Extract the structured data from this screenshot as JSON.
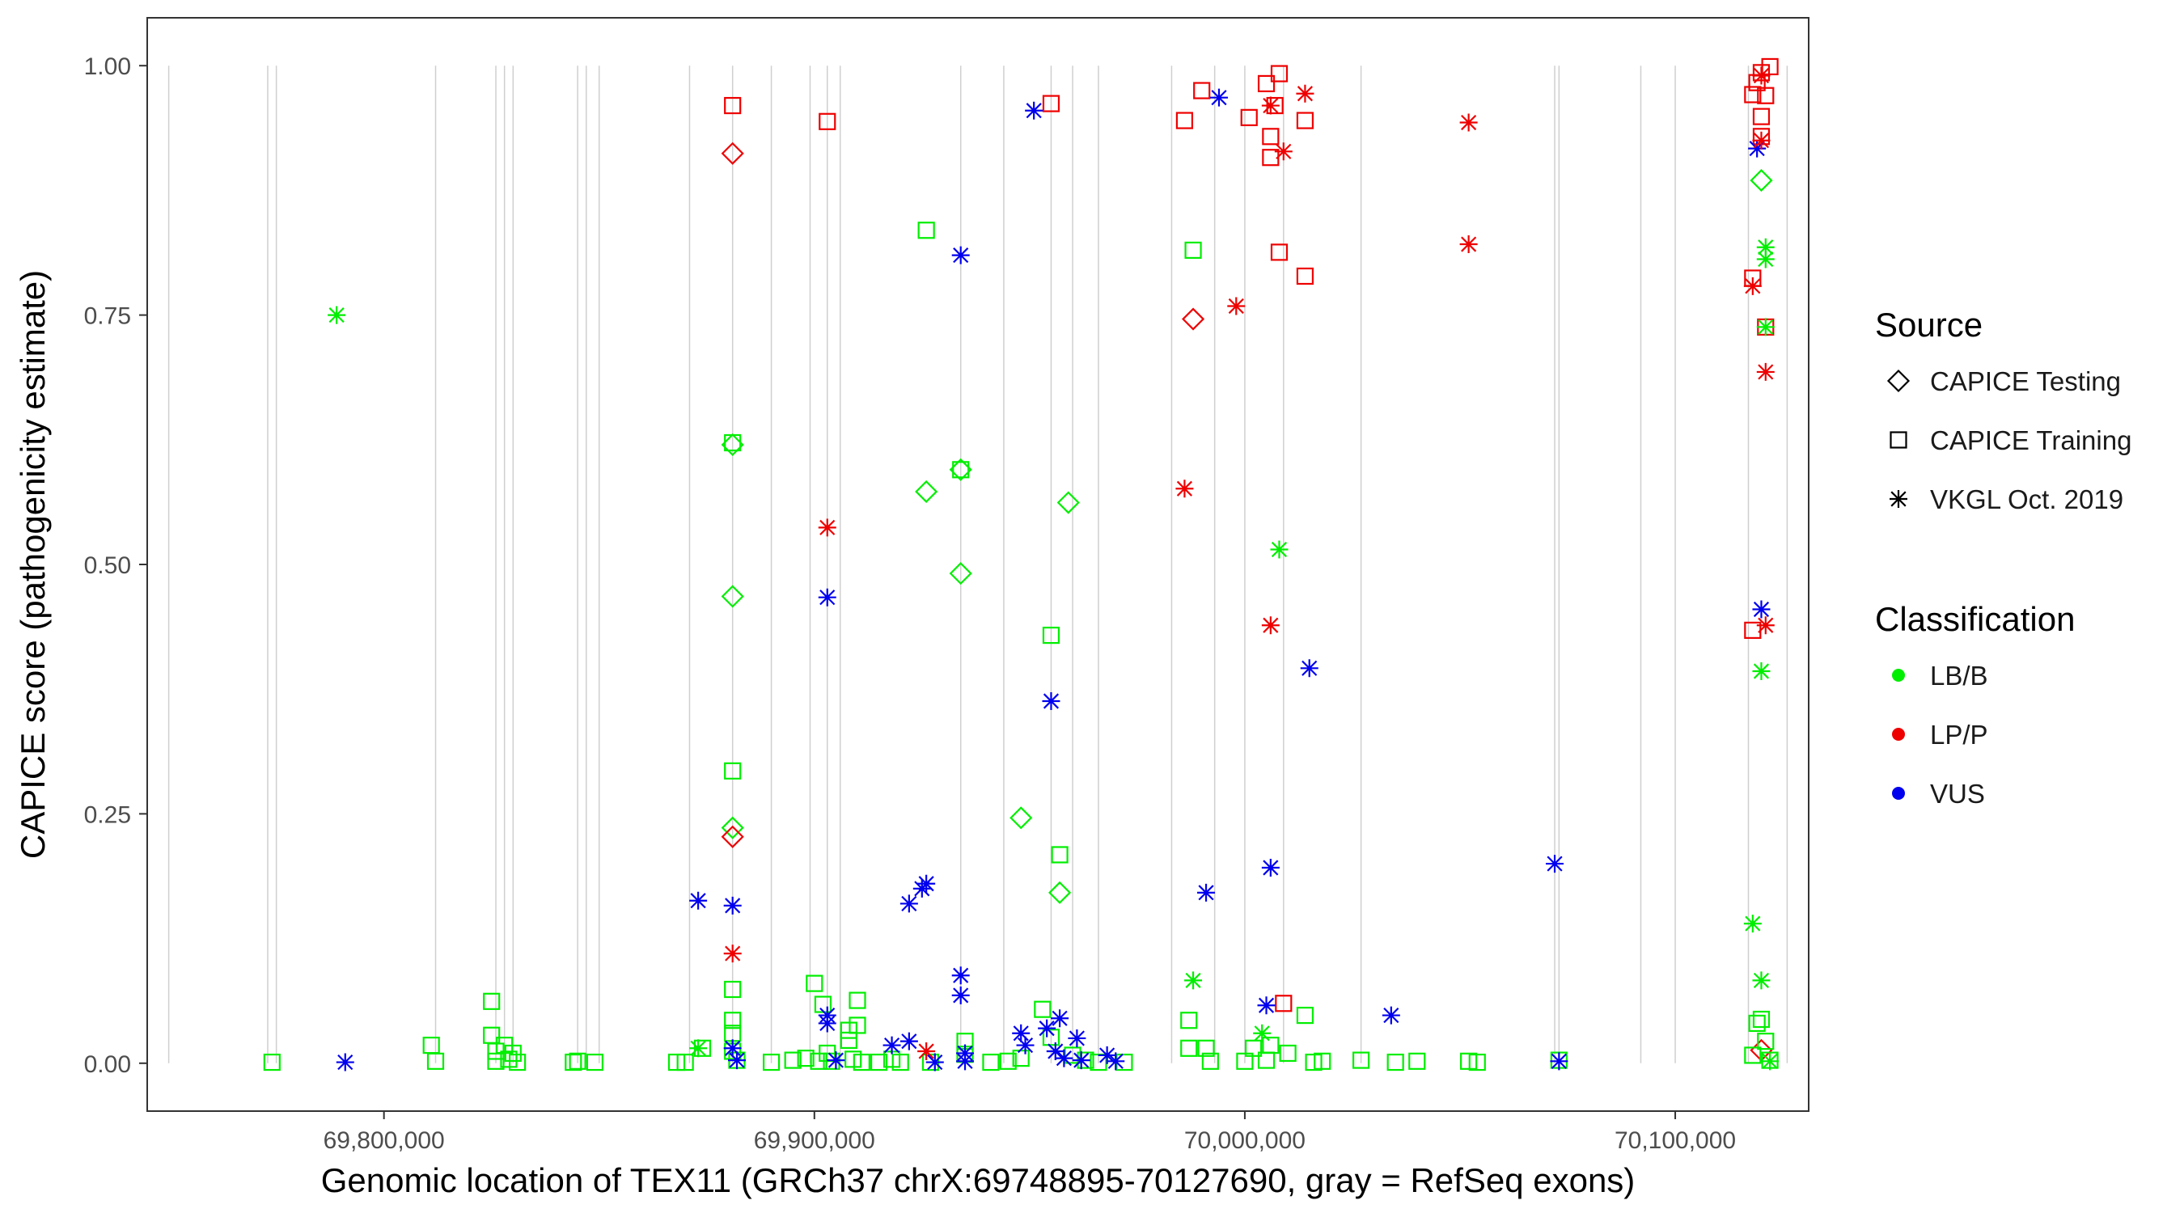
{
  "chart_data": {
    "type": "scatter",
    "title": "",
    "xlabel": "Genomic location of TEX11 (GRCh37 chrX:69748895-70127690, gray = RefSeq exons)",
    "ylabel": "CAPICE score (pathogenicity estimate)",
    "xlim": [
      69745000,
      70131000
    ],
    "ylim": [
      -0.048,
      1.048
    ],
    "x_ticks": [
      69800000,
      69900000,
      70000000,
      70100000
    ],
    "x_tick_labels": [
      "69,800,000",
      "69,900,000",
      "70,000,000",
      "70,100,000"
    ],
    "y_ticks": [
      0,
      0.25,
      0.5,
      0.75,
      1.0
    ],
    "y_tick_labels": [
      "0.00",
      "0.25",
      "0.50",
      "0.75",
      "1.00"
    ],
    "exons": [
      69750000,
      69773000,
      69775000,
      69812000,
      69826000,
      69828000,
      69830000,
      69845000,
      69847000,
      69850000,
      69871000,
      69881000,
      69890000,
      69899000,
      69903000,
      69906000,
      69934000,
      69944000,
      69955000,
      69960000,
      69966000,
      69983000,
      69993000,
      70000000,
      70009000,
      70027000,
      70072000,
      70073000,
      70092000,
      70100000,
      70117000,
      70126000
    ],
    "legend_source": {
      "title": "Source",
      "entries": [
        {
          "label": "CAPICE Testing",
          "shape": "diamond"
        },
        {
          "label": "CAPICE Training",
          "shape": "square"
        },
        {
          "label": "VKGL Oct. 2019",
          "shape": "asterisk"
        }
      ]
    },
    "legend_class": {
      "title": "Classification",
      "entries": [
        {
          "label": "LB/B",
          "color": "#00ee00"
        },
        {
          "label": "LP/P",
          "color": "#ee0000"
        },
        {
          "label": "VUS",
          "color": "#0000ee"
        }
      ]
    },
    "colors": {
      "LB/B": "#00ee00",
      "LP/P": "#ee0000",
      "VUS": "#0000ee"
    },
    "series": [
      {
        "name": "CAPICE Testing",
        "shape": "diamond",
        "points": [
          [
            69881000,
            0.912,
            "LP/P"
          ],
          [
            69881000,
            0.62,
            "LB/B"
          ],
          [
            69881000,
            0.468,
            "LB/B"
          ],
          [
            69881000,
            0.236,
            "LB/B"
          ],
          [
            69881000,
            0.227,
            "LP/P"
          ],
          [
            69926000,
            0.573,
            "LB/B"
          ],
          [
            69934000,
            0.595,
            "LB/B"
          ],
          [
            69934000,
            0.491,
            "LB/B"
          ],
          [
            69948000,
            0.246,
            "LB/B"
          ],
          [
            69957000,
            0.171,
            "LB/B"
          ],
          [
            69959000,
            0.562,
            "LB/B"
          ],
          [
            69988000,
            0.746,
            "LP/P"
          ],
          [
            70120000,
            0.885,
            "LB/B"
          ],
          [
            70120000,
            0.013,
            "LP/P"
          ]
        ]
      },
      {
        "name": "CAPICE Training",
        "shape": "square",
        "points": [
          [
            69774000,
            0.001,
            "LB/B"
          ],
          [
            69811000,
            0.018,
            "LB/B"
          ],
          [
            69812000,
            0.002,
            "LB/B"
          ],
          [
            69825000,
            0.062,
            "LB/B"
          ],
          [
            69825000,
            0.028,
            "LB/B"
          ],
          [
            69826000,
            0.012,
            "LB/B"
          ],
          [
            69826000,
            0.002,
            "LB/B"
          ],
          [
            69828000,
            0.018,
            "LB/B"
          ],
          [
            69829000,
            0.004,
            "LB/B"
          ],
          [
            69830000,
            0.01,
            "LB/B"
          ],
          [
            69831000,
            0.001,
            "LB/B"
          ],
          [
            69844000,
            0.001,
            "LB/B"
          ],
          [
            69845000,
            0.002,
            "LB/B"
          ],
          [
            69849000,
            0.001,
            "LB/B"
          ],
          [
            69868000,
            0.001,
            "LB/B"
          ],
          [
            69870000,
            0.001,
            "LB/B"
          ],
          [
            69874000,
            0.015,
            "LB/B"
          ],
          [
            69881000,
            0.96,
            "LP/P"
          ],
          [
            69881000,
            0.622,
            "LB/B"
          ],
          [
            69881000,
            0.293,
            "LB/B"
          ],
          [
            69881000,
            0.074,
            "LB/B"
          ],
          [
            69881000,
            0.043,
            "LB/B"
          ],
          [
            69881000,
            0.03,
            "LB/B"
          ],
          [
            69881000,
            0.012,
            "LB/B"
          ],
          [
            69882000,
            0.003,
            "LB/B"
          ],
          [
            69890000,
            0.001,
            "LB/B"
          ],
          [
            69895000,
            0.003,
            "LB/B"
          ],
          [
            69898000,
            0.005,
            "LB/B"
          ],
          [
            69900000,
            0.08,
            "LB/B"
          ],
          [
            69901000,
            0.002,
            "LB/B"
          ],
          [
            69902000,
            0.059,
            "LB/B"
          ],
          [
            69903000,
            0.944,
            "LP/P"
          ],
          [
            69903000,
            0.01,
            "LB/B"
          ],
          [
            69904000,
            0.002,
            "LB/B"
          ],
          [
            69908000,
            0.033,
            "LB/B"
          ],
          [
            69908000,
            0.023,
            "LB/B"
          ],
          [
            69909000,
            0.004,
            "LB/B"
          ],
          [
            69910000,
            0.063,
            "LB/B"
          ],
          [
            69910000,
            0.038,
            "LB/B"
          ],
          [
            69911000,
            0.001,
            "LB/B"
          ],
          [
            69915000,
            0.001,
            "LB/B"
          ],
          [
            69918000,
            0.004,
            "LB/B"
          ],
          [
            69920000,
            0.001,
            "LB/B"
          ],
          [
            69926000,
            0.835,
            "LB/B"
          ],
          [
            69927000,
            0.001,
            "LB/B"
          ],
          [
            69934000,
            0.595,
            "LB/B"
          ],
          [
            69935000,
            0.022,
            "LB/B"
          ],
          [
            69935000,
            0.009,
            "LB/B"
          ],
          [
            69941000,
            0.001,
            "LB/B"
          ],
          [
            69945000,
            0.002,
            "LB/B"
          ],
          [
            69948000,
            0.005,
            "LB/B"
          ],
          [
            69953000,
            0.054,
            "LB/B"
          ],
          [
            69955000,
            0.962,
            "LP/P"
          ],
          [
            69955000,
            0.429,
            "LB/B"
          ],
          [
            69955000,
            0.026,
            "LB/B"
          ],
          [
            69957000,
            0.209,
            "LB/B"
          ],
          [
            69960000,
            0.008,
            "LB/B"
          ],
          [
            69963000,
            0.003,
            "LB/B"
          ],
          [
            69966000,
            0.001,
            "LB/B"
          ],
          [
            69972000,
            0.001,
            "LB/B"
          ],
          [
            69986000,
            0.945,
            "LP/P"
          ],
          [
            69987000,
            0.043,
            "LB/B"
          ],
          [
            69987000,
            0.015,
            "LB/B"
          ],
          [
            69988000,
            0.815,
            "LB/B"
          ],
          [
            69990000,
            0.975,
            "LP/P"
          ],
          [
            69991000,
            0.015,
            "LB/B"
          ],
          [
            69992000,
            0.002,
            "LB/B"
          ],
          [
            70000000,
            0.002,
            "LB/B"
          ],
          [
            70001000,
            0.948,
            "LP/P"
          ],
          [
            70002000,
            0.015,
            "LB/B"
          ],
          [
            70005000,
            0.003,
            "LB/B"
          ],
          [
            70005000,
            0.982,
            "LP/P"
          ],
          [
            70006000,
            0.929,
            "LP/P"
          ],
          [
            70006000,
            0.908,
            "LP/P"
          ],
          [
            70006000,
            0.018,
            "LB/B"
          ],
          [
            70007000,
            0.96,
            "LP/P"
          ],
          [
            70008000,
            0.992,
            "LP/P"
          ],
          [
            70008000,
            0.813,
            "LP/P"
          ],
          [
            70009000,
            0.06,
            "LP/P"
          ],
          [
            70010000,
            0.01,
            "LB/B"
          ],
          [
            70014000,
            0.945,
            "LP/P"
          ],
          [
            70014000,
            0.789,
            "LP/P"
          ],
          [
            70014000,
            0.048,
            "LB/B"
          ],
          [
            70016000,
            0.001,
            "LB/B"
          ],
          [
            70018000,
            0.002,
            "LB/B"
          ],
          [
            70027000,
            0.003,
            "LB/B"
          ],
          [
            70035000,
            0.001,
            "LB/B"
          ],
          [
            70040000,
            0.002,
            "LB/B"
          ],
          [
            70052000,
            0.002,
            "LB/B"
          ],
          [
            70054000,
            0.001,
            "LB/B"
          ],
          [
            70073000,
            0.003,
            "LB/B"
          ],
          [
            70118000,
            0.971,
            "LP/P"
          ],
          [
            70118000,
            0.787,
            "LP/P"
          ],
          [
            70118000,
            0.434,
            "LP/P"
          ],
          [
            70118000,
            0.008,
            "LB/B"
          ],
          [
            70119000,
            0.983,
            "LP/P"
          ],
          [
            70119000,
            0.04,
            "LB/B"
          ],
          [
            70120000,
            0.993,
            "LP/P"
          ],
          [
            70120000,
            0.949,
            "LP/P"
          ],
          [
            70120000,
            0.929,
            "LP/P"
          ],
          [
            70120000,
            0.044,
            "LB/B"
          ],
          [
            70121000,
            0.97,
            "LP/P"
          ],
          [
            70121000,
            0.738,
            "LP/P"
          ],
          [
            70121000,
            0.022,
            "LB/B"
          ],
          [
            70122000,
            0.999,
            "LP/P"
          ],
          [
            70122000,
            0.003,
            "LB/B"
          ]
        ]
      },
      {
        "name": "VKGL Oct. 2019",
        "shape": "asterisk",
        "points": [
          [
            69789000,
            0.75,
            "LB/B"
          ],
          [
            69791000,
            0.001,
            "VUS"
          ],
          [
            69873000,
            0.163,
            "VUS"
          ],
          [
            69873000,
            0.015,
            "LB/B"
          ],
          [
            69881000,
            0.158,
            "VUS"
          ],
          [
            69881000,
            0.11,
            "LP/P"
          ],
          [
            69881000,
            0.015,
            "VUS"
          ],
          [
            69882000,
            0.003,
            "VUS"
          ],
          [
            69903000,
            0.537,
            "LP/P"
          ],
          [
            69903000,
            0.467,
            "VUS"
          ],
          [
            69903000,
            0.048,
            "VUS"
          ],
          [
            69903000,
            0.04,
            "VUS"
          ],
          [
            69905000,
            0.003,
            "VUS"
          ],
          [
            69918000,
            0.018,
            "VUS"
          ],
          [
            69922000,
            0.16,
            "VUS"
          ],
          [
            69922000,
            0.022,
            "VUS"
          ],
          [
            69925000,
            0.175,
            "VUS"
          ],
          [
            69926000,
            0.18,
            "VUS"
          ],
          [
            69926000,
            0.012,
            "LP/P"
          ],
          [
            69928000,
            0.001,
            "VUS"
          ],
          [
            69934000,
            0.81,
            "VUS"
          ],
          [
            69934000,
            0.088,
            "VUS"
          ],
          [
            69934000,
            0.068,
            "VUS"
          ],
          [
            69935000,
            0.01,
            "VUS"
          ],
          [
            69935000,
            0.002,
            "VUS"
          ],
          [
            69948000,
            0.03,
            "VUS"
          ],
          [
            69949000,
            0.018,
            "VUS"
          ],
          [
            69951000,
            0.955,
            "VUS"
          ],
          [
            69954000,
            0.035,
            "VUS"
          ],
          [
            69955000,
            0.363,
            "VUS"
          ],
          [
            69956000,
            0.012,
            "VUS"
          ],
          [
            69957000,
            0.045,
            "VUS"
          ],
          [
            69958000,
            0.005,
            "VUS"
          ],
          [
            69961000,
            0.025,
            "VUS"
          ],
          [
            69962000,
            0.003,
            "VUS"
          ],
          [
            69968000,
            0.008,
            "VUS"
          ],
          [
            69970000,
            0.002,
            "VUS"
          ],
          [
            69986000,
            0.576,
            "LP/P"
          ],
          [
            69988000,
            0.083,
            "LB/B"
          ],
          [
            69991000,
            0.171,
            "VUS"
          ],
          [
            69994000,
            0.968,
            "VUS"
          ],
          [
            69998000,
            0.759,
            "LP/P"
          ],
          [
            70004000,
            0.03,
            "LB/B"
          ],
          [
            70005000,
            0.058,
            "VUS"
          ],
          [
            70006000,
            0.196,
            "VUS"
          ],
          [
            70006000,
            0.439,
            "LP/P"
          ],
          [
            70006000,
            0.96,
            "LP/P"
          ],
          [
            70008000,
            0.515,
            "LB/B"
          ],
          [
            70009000,
            0.914,
            "LP/P"
          ],
          [
            70014000,
            0.972,
            "LP/P"
          ],
          [
            70015000,
            0.396,
            "VUS"
          ],
          [
            70034000,
            0.048,
            "VUS"
          ],
          [
            70052000,
            0.943,
            "LP/P"
          ],
          [
            70052000,
            0.821,
            "LP/P"
          ],
          [
            70072000,
            0.2,
            "VUS"
          ],
          [
            70073000,
            0.002,
            "VUS"
          ],
          [
            70118000,
            0.14,
            "LB/B"
          ],
          [
            70118000,
            0.779,
            "LP/P"
          ],
          [
            70119000,
            0.917,
            "VUS"
          ],
          [
            70120000,
            0.455,
            "VUS"
          ],
          [
            70120000,
            0.393,
            "LB/B"
          ],
          [
            70120000,
            0.083,
            "LB/B"
          ],
          [
            70120000,
            0.925,
            "LP/P"
          ],
          [
            70121000,
            0.439,
            "LP/P"
          ],
          [
            70121000,
            0.693,
            "LP/P"
          ],
          [
            70121000,
            0.818,
            "LB/B"
          ],
          [
            70121000,
            0.806,
            "LB/B"
          ],
          [
            70121000,
            0.738,
            "LB/B"
          ],
          [
            70120000,
            0.99,
            "LP/P"
          ],
          [
            70122000,
            0.002,
            "LB/B"
          ]
        ]
      }
    ]
  }
}
